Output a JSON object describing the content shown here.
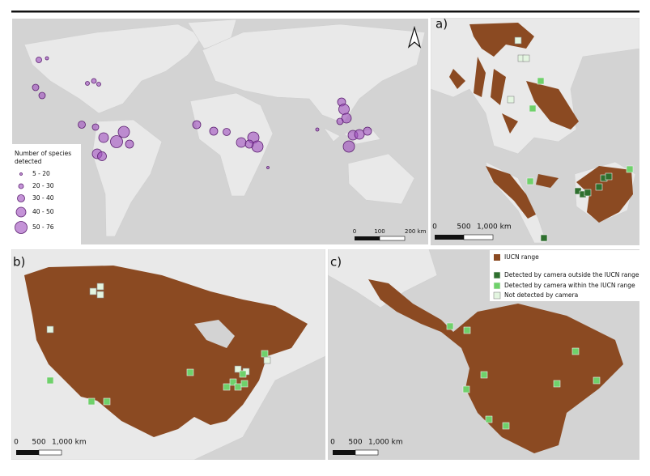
{
  "main_map": {
    "legend": {
      "title_line1": "Number of species",
      "title_line2": "detected",
      "classes": [
        "5 - 20",
        "20 - 30",
        "30 - 40",
        "40 - 50",
        "50 - 76"
      ]
    },
    "scale_bar": [
      "0",
      "100",
      "200 km"
    ]
  },
  "panels": [
    {
      "label": "a)",
      "scale_bar": [
        "0",
        "500",
        "1,000 km"
      ]
    },
    {
      "label": "b)",
      "scale_bar": [
        "0",
        "500",
        "1,000 km"
      ]
    },
    {
      "label": "c)",
      "scale_bar": [
        "0",
        "500",
        "1,000 km"
      ]
    }
  ],
  "legend": {
    "items": [
      "IUCN range",
      "Detected by camera outside the IUCN range",
      "Detected by camera within the IUCN range",
      "Not detected by camera"
    ]
  }
}
